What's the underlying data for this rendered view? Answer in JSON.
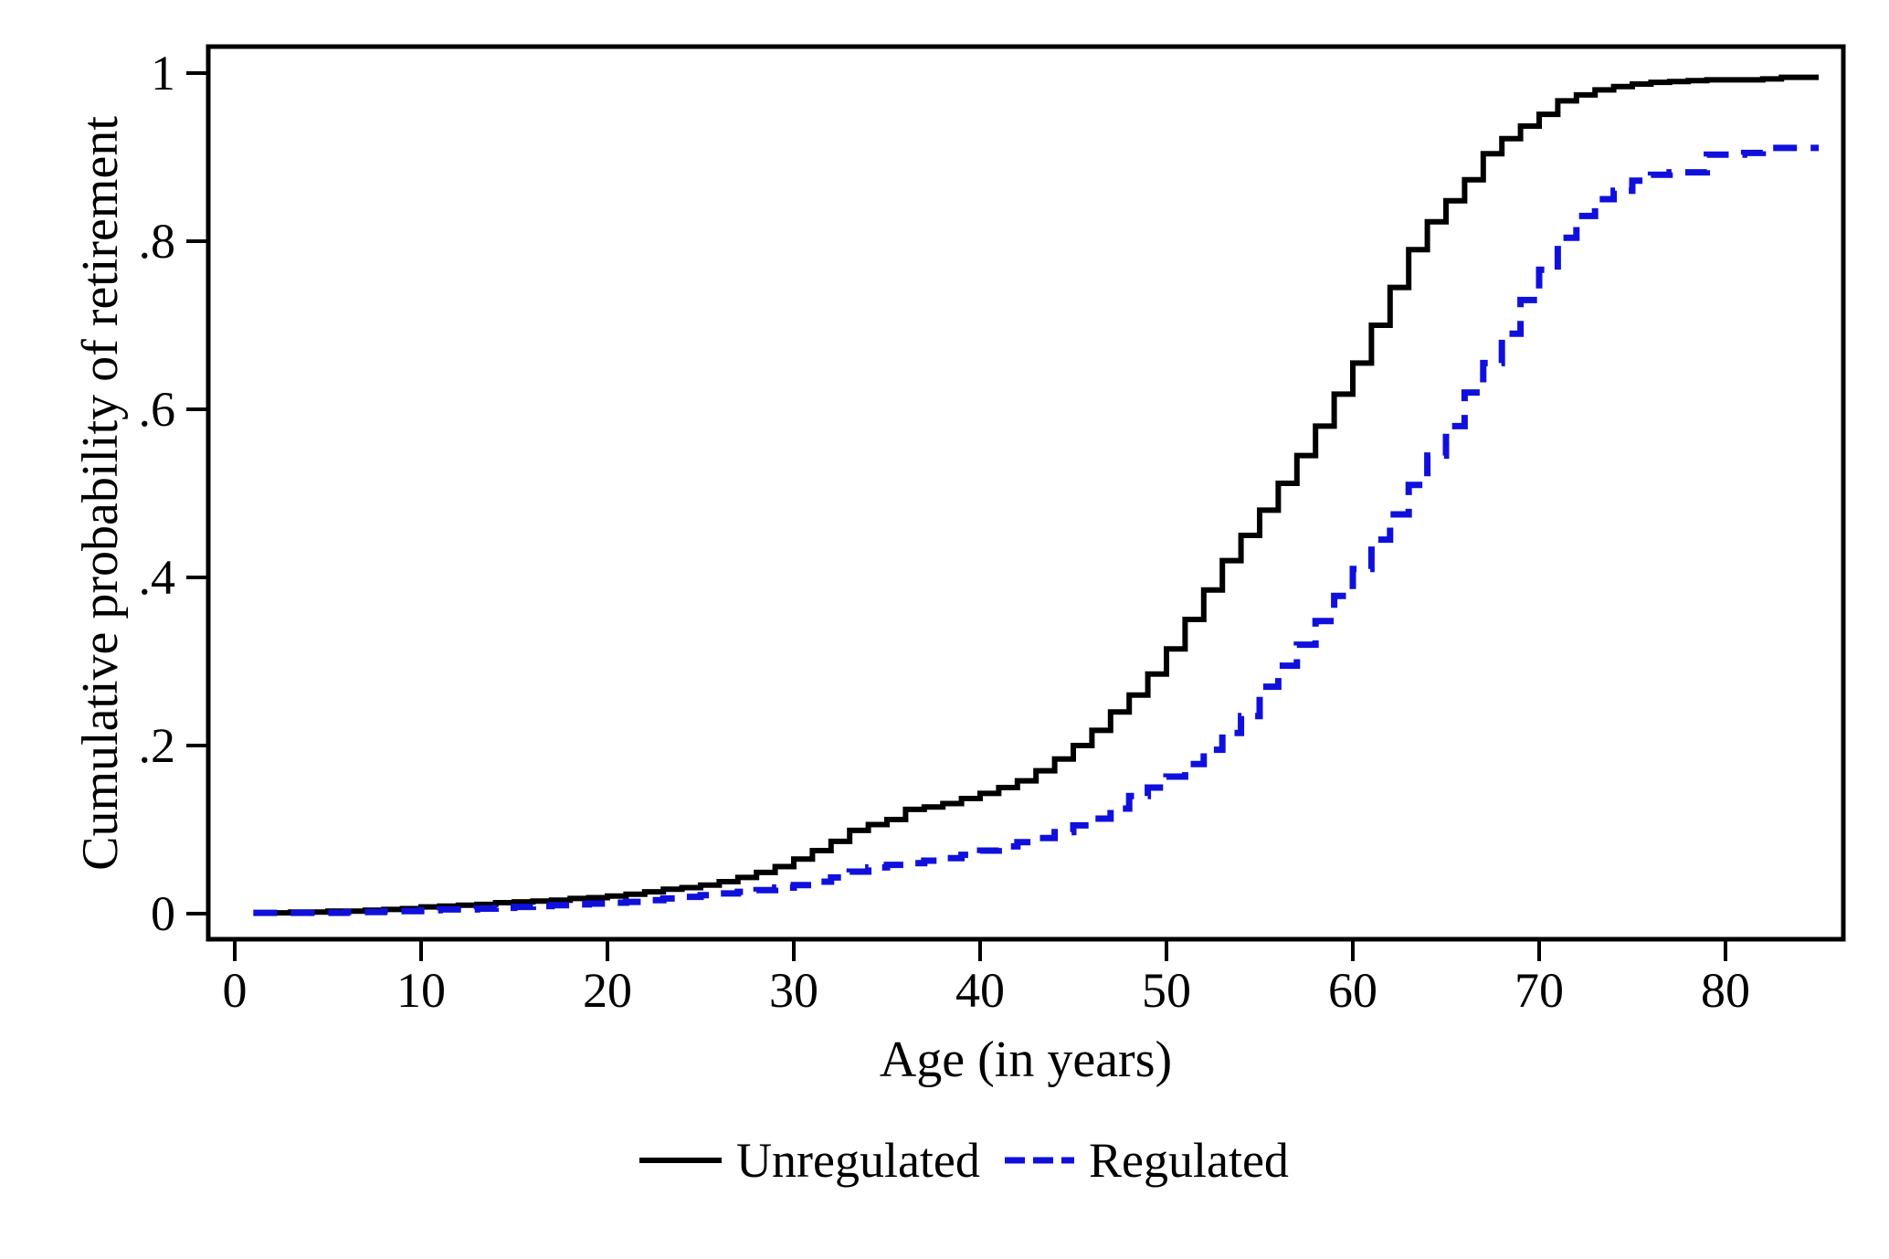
{
  "figure": {
    "background_color": "#ffffff",
    "frame_color": "#000000"
  },
  "chart_data": {
    "type": "line",
    "subtype": "step-cumulative-distribution",
    "title": "",
    "xlabel": "Age (in years)",
    "ylabel": "Cumulative probability of retirement",
    "xlim": [
      -1.45,
      86.3
    ],
    "ylim": [
      -0.03,
      1.03
    ],
    "grid": false,
    "x_ticks": [
      0,
      10,
      20,
      30,
      40,
      50,
      60,
      70,
      80
    ],
    "x_tick_labels": [
      "0",
      "10",
      "20",
      "30",
      "40",
      "50",
      "60",
      "70",
      "80"
    ],
    "y_ticks": [
      0,
      0.2,
      0.4,
      0.6,
      0.8,
      1
    ],
    "y_tick_labels": [
      "0",
      ".2",
      ".4",
      ".6",
      ".8",
      "1"
    ],
    "legend_position": "bottom-center",
    "series": [
      {
        "name": "Unregulated",
        "color": "#000000",
        "style": "solid",
        "ages": [
          1,
          2,
          3,
          4,
          5,
          6,
          7,
          8,
          9,
          10,
          11,
          12,
          13,
          14,
          15,
          16,
          17,
          18,
          19,
          20,
          21,
          22,
          23,
          24,
          25,
          26,
          27,
          28,
          29,
          30,
          31,
          32,
          33,
          34,
          35,
          36,
          37,
          38,
          39,
          40,
          41,
          42,
          43,
          44,
          45,
          46,
          47,
          48,
          49,
          50,
          51,
          52,
          53,
          54,
          55,
          56,
          57,
          58,
          59,
          60,
          61,
          62,
          63,
          64,
          65,
          66,
          67,
          68,
          69,
          70,
          71,
          72,
          73,
          74,
          75,
          76,
          77,
          78,
          79,
          80,
          81,
          82,
          83,
          84,
          85
        ],
        "values": [
          0.001,
          0.001,
          0.002,
          0.002,
          0.003,
          0.003,
          0.004,
          0.005,
          0.006,
          0.008,
          0.009,
          0.01,
          0.011,
          0.013,
          0.014,
          0.015,
          0.016,
          0.018,
          0.019,
          0.021,
          0.023,
          0.026,
          0.029,
          0.031,
          0.034,
          0.038,
          0.043,
          0.049,
          0.056,
          0.065,
          0.075,
          0.086,
          0.099,
          0.106,
          0.112,
          0.124,
          0.127,
          0.131,
          0.137,
          0.143,
          0.15,
          0.158,
          0.17,
          0.184,
          0.2,
          0.218,
          0.24,
          0.26,
          0.285,
          0.315,
          0.35,
          0.385,
          0.42,
          0.45,
          0.48,
          0.512,
          0.545,
          0.58,
          0.618,
          0.655,
          0.7,
          0.745,
          0.79,
          0.823,
          0.848,
          0.873,
          0.904,
          0.922,
          0.937,
          0.951,
          0.967,
          0.974,
          0.98,
          0.984,
          0.987,
          0.989,
          0.99,
          0.991,
          0.992,
          0.992,
          0.992,
          0.993,
          0.995,
          0.995,
          0.995
        ]
      },
      {
        "name": "Regulated",
        "color": "#1010dd",
        "style": "dashed",
        "ages": [
          1,
          2,
          3,
          4,
          5,
          6,
          7,
          8,
          9,
          10,
          11,
          12,
          13,
          14,
          15,
          16,
          17,
          18,
          19,
          20,
          21,
          22,
          23,
          24,
          25,
          26,
          27,
          28,
          29,
          30,
          31,
          32,
          33,
          34,
          35,
          36,
          37,
          38,
          39,
          40,
          41,
          42,
          43,
          44,
          45,
          46,
          47,
          48,
          49,
          50,
          51,
          52,
          53,
          54,
          55,
          56,
          57,
          58,
          59,
          60,
          61,
          62,
          63,
          64,
          65,
          66,
          67,
          68,
          69,
          70,
          71,
          72,
          73,
          74,
          75,
          76,
          77,
          78,
          79,
          80,
          81,
          82,
          83,
          84,
          85
        ],
        "values": [
          0.001,
          0.001,
          0.001,
          0.001,
          0.001,
          0.002,
          0.002,
          0.003,
          0.003,
          0.004,
          0.005,
          0.005,
          0.006,
          0.007,
          0.008,
          0.009,
          0.01,
          0.011,
          0.012,
          0.013,
          0.014,
          0.016,
          0.018,
          0.02,
          0.022,
          0.024,
          0.026,
          0.028,
          0.031,
          0.034,
          0.038,
          0.043,
          0.05,
          0.055,
          0.058,
          0.06,
          0.063,
          0.066,
          0.07,
          0.075,
          0.08,
          0.085,
          0.09,
          0.097,
          0.105,
          0.113,
          0.125,
          0.14,
          0.15,
          0.163,
          0.178,
          0.195,
          0.215,
          0.235,
          0.27,
          0.295,
          0.32,
          0.348,
          0.378,
          0.41,
          0.445,
          0.475,
          0.51,
          0.545,
          0.58,
          0.62,
          0.655,
          0.69,
          0.73,
          0.766,
          0.804,
          0.83,
          0.85,
          0.86,
          0.872,
          0.879,
          0.882,
          0.882,
          0.903,
          0.903,
          0.905,
          0.911,
          0.911,
          0.911,
          0.911
        ]
      }
    ]
  }
}
